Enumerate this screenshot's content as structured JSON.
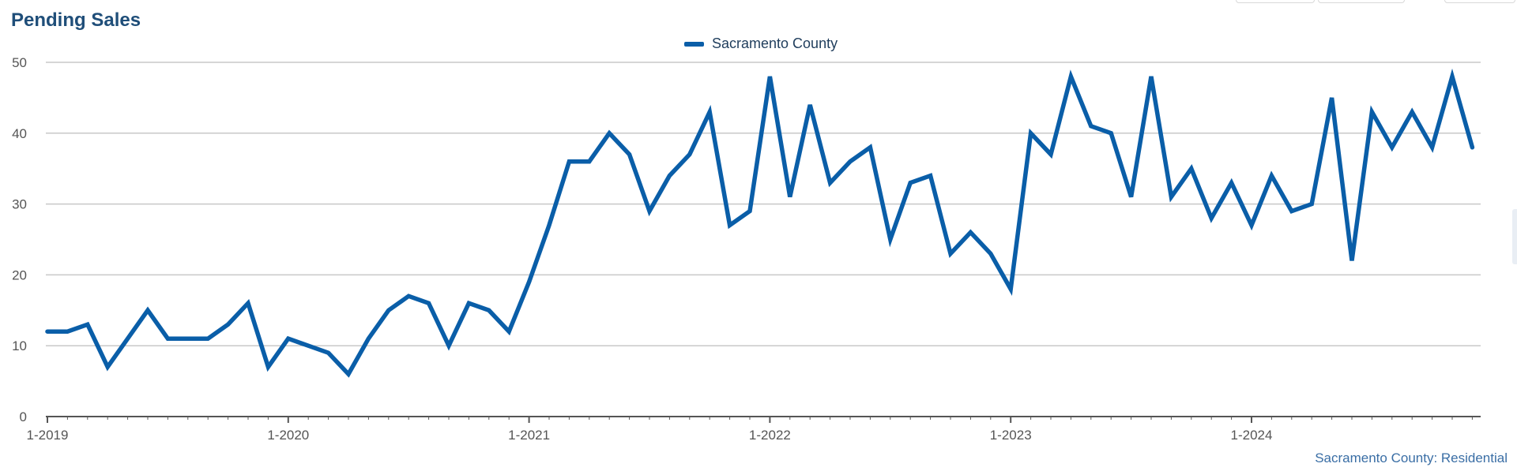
{
  "header": {
    "title": "Pending Sales"
  },
  "legend": {
    "label": "Sacramento County"
  },
  "footer": {
    "source_label": "Sacramento County: Residential"
  },
  "colors": {
    "series": "#0a5ea8",
    "title": "#1f4e79",
    "grid": "#c8c8c8",
    "axis": "#555555"
  },
  "chart_data": {
    "type": "line",
    "title": "Pending Sales",
    "xlabel": "",
    "ylabel": "",
    "ylim": [
      0,
      50
    ],
    "yticks": [
      0,
      10,
      20,
      30,
      40,
      50
    ],
    "xtick_labels": [
      "1-2019",
      "1-2020",
      "1-2021",
      "1-2022",
      "1-2023",
      "1-2024"
    ],
    "grid": true,
    "legend_position": "top-center",
    "x": [
      "1-2019",
      "2-2019",
      "3-2019",
      "4-2019",
      "5-2019",
      "6-2019",
      "7-2019",
      "8-2019",
      "9-2019",
      "10-2019",
      "11-2019",
      "12-2019",
      "1-2020",
      "2-2020",
      "3-2020",
      "4-2020",
      "5-2020",
      "6-2020",
      "7-2020",
      "8-2020",
      "9-2020",
      "10-2020",
      "11-2020",
      "12-2020",
      "1-2021",
      "2-2021",
      "3-2021",
      "4-2021",
      "5-2021",
      "6-2021",
      "7-2021",
      "8-2021",
      "9-2021",
      "10-2021",
      "11-2021",
      "12-2021",
      "1-2022",
      "2-2022",
      "3-2022",
      "4-2022",
      "5-2022",
      "6-2022",
      "7-2022",
      "8-2022",
      "9-2022",
      "10-2022",
      "11-2022",
      "12-2022",
      "1-2023",
      "2-2023",
      "3-2023",
      "4-2023",
      "5-2023",
      "6-2023",
      "7-2023",
      "8-2023",
      "9-2023",
      "10-2023",
      "11-2023",
      "12-2023",
      "1-2024",
      "2-2024",
      "3-2024",
      "4-2024",
      "5-2024",
      "6-2024",
      "7-2024",
      "8-2024",
      "9-2024",
      "10-2024",
      "11-2024",
      "12-2024"
    ],
    "series": [
      {
        "name": "Sacramento County",
        "values": [
          12,
          12,
          13,
          7,
          11,
          15,
          11,
          11,
          11,
          13,
          16,
          7,
          11,
          10,
          9,
          6,
          11,
          15,
          17,
          16,
          10,
          16,
          15,
          12,
          19,
          27,
          36,
          36,
          40,
          37,
          29,
          34,
          37,
          43,
          27,
          29,
          48,
          31,
          44,
          33,
          36,
          38,
          25,
          33,
          34,
          23,
          26,
          23,
          18,
          40,
          37,
          48,
          41,
          40,
          31,
          48,
          31,
          35,
          28,
          33,
          27,
          34,
          29,
          30,
          45,
          22,
          43,
          38,
          43,
          38,
          48,
          38
        ]
      }
    ]
  }
}
